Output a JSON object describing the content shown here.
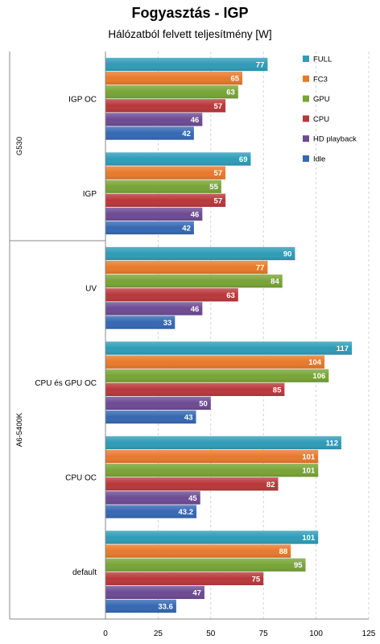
{
  "chart_data": {
    "type": "bar",
    "orientation": "horizontal",
    "title": "Fogyasztás - IGP",
    "subtitle": "Hálózatból felvett teljesítmény [W]",
    "xlim": [
      0,
      125
    ],
    "xticks": [
      0,
      25,
      50,
      75,
      100,
      125
    ],
    "grid": true,
    "legend_position": "right",
    "series": [
      {
        "name": "FULL",
        "color": "#2e9cb8"
      },
      {
        "name": "FC3",
        "color": "#e8792b"
      },
      {
        "name": "GPU",
        "color": "#78a436"
      },
      {
        "name": "CPU",
        "color": "#b9373a"
      },
      {
        "name": "HD playback",
        "color": "#6d4a93"
      },
      {
        "name": "Idle",
        "color": "#3568b3"
      }
    ],
    "groups": [
      {
        "name": "G530",
        "categories": [
          {
            "label": "IGP OC",
            "values": [
              77,
              65,
              63,
              57,
              46,
              42
            ]
          },
          {
            "label": "IGP",
            "values": [
              69,
              57,
              55,
              57,
              46,
              42
            ]
          }
        ]
      },
      {
        "name": "A6-5400K",
        "categories": [
          {
            "label": "UV",
            "values": [
              90,
              77,
              84,
              63,
              46,
              33
            ]
          },
          {
            "label": "CPU és GPU OC",
            "values": [
              117,
              104,
              106,
              85,
              50,
              43
            ]
          },
          {
            "label": "CPU OC",
            "values": [
              112,
              101,
              101,
              82,
              45,
              43.2
            ]
          },
          {
            "label": "default",
            "values": [
              101,
              88,
              95,
              75,
              47,
              33.6
            ]
          }
        ]
      }
    ]
  }
}
